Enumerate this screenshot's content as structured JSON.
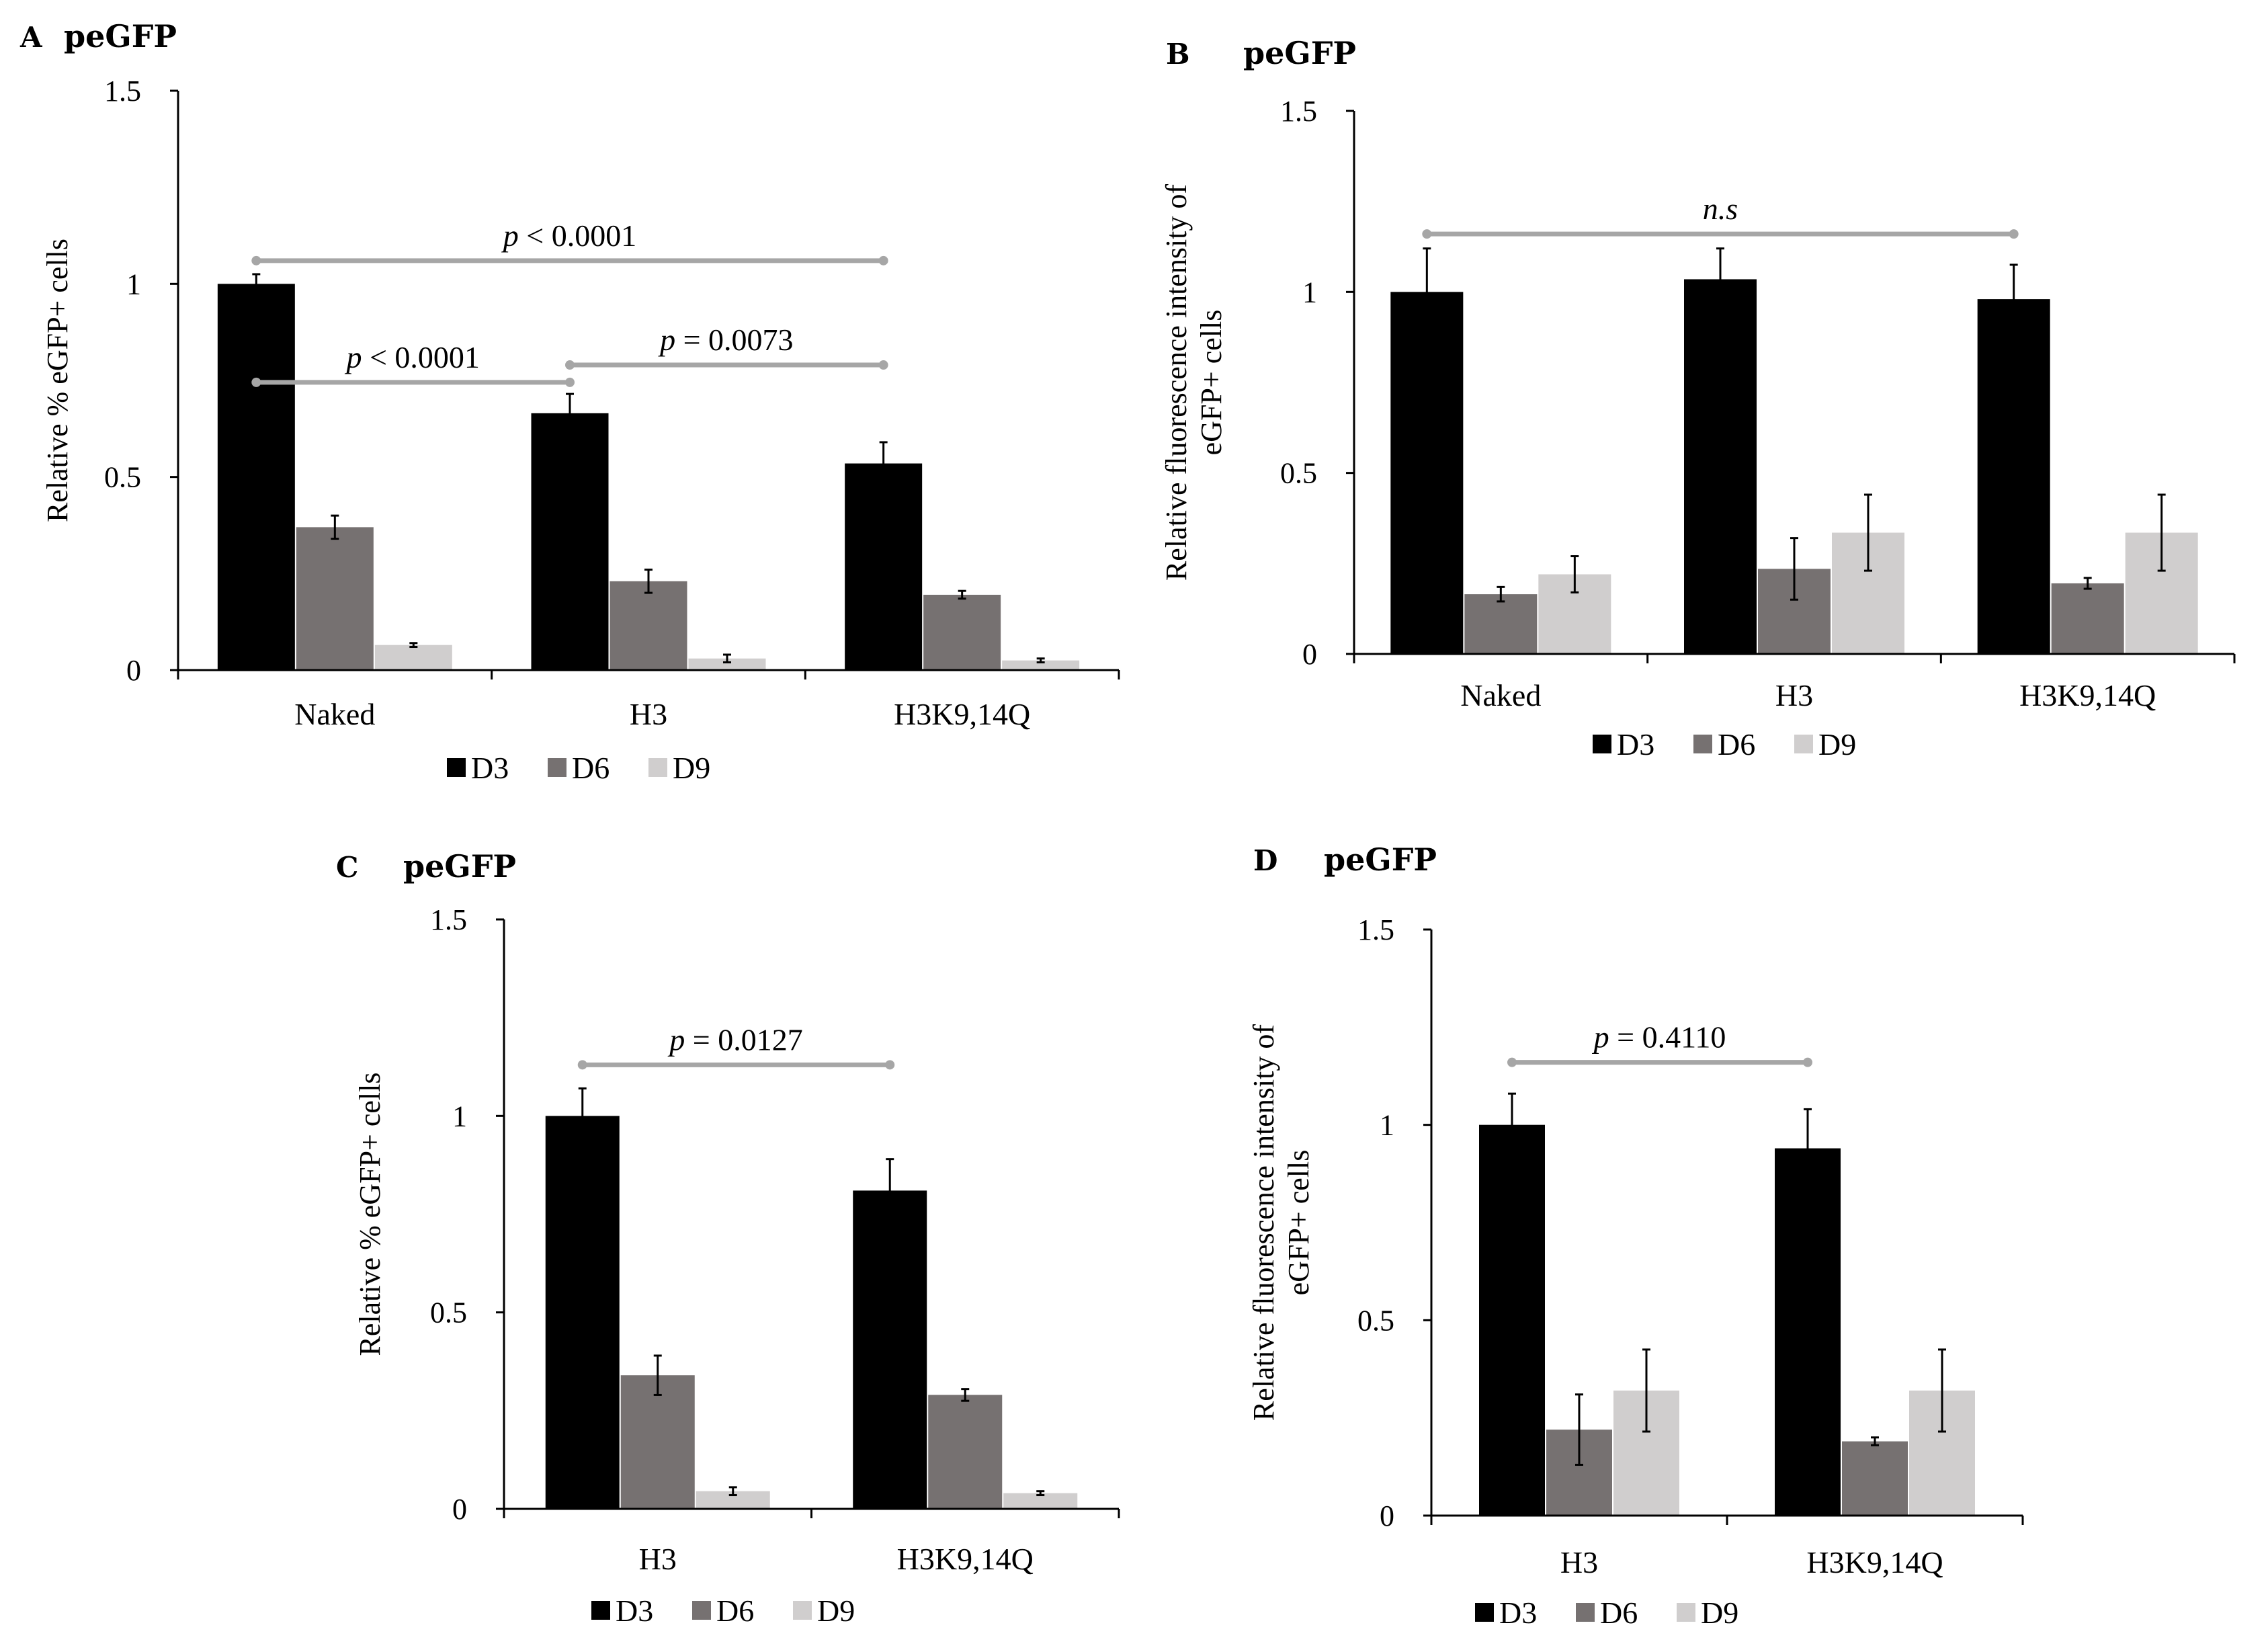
{
  "colors": {
    "D3": "#000000",
    "D6": "#767171",
    "D9": "#d0cece",
    "sig": "#a6a6a6"
  },
  "chart_data": [
    {
      "panel": "A",
      "title": "peGFP",
      "type": "bar",
      "ylabel": "Relative % eGFP+ cells",
      "xlabel": "",
      "ylim": [
        0,
        1.5
      ],
      "yticks": [
        "0",
        "0.5",
        "1",
        "1.5"
      ],
      "categories": [
        "Naked",
        "H3",
        "H3K9,14Q"
      ],
      "series": [
        {
          "name": "D3",
          "values": [
            1.0,
            0.665,
            0.535
          ],
          "errors": [
            0.025,
            0.05,
            0.055
          ]
        },
        {
          "name": "D6",
          "values": [
            0.37,
            0.23,
            0.195
          ],
          "errors": [
            0.03,
            0.03,
            0.01
          ]
        },
        {
          "name": "D9",
          "values": [
            0.065,
            0.03,
            0.025
          ],
          "errors": [
            0.005,
            0.01,
            0.005
          ]
        }
      ],
      "annotations": [
        {
          "italic": "p",
          "text": " < 0.0001",
          "from": 0,
          "to": 2,
          "y": 1.06
        },
        {
          "italic": "p",
          "text": " < 0.0001",
          "from": 0,
          "to": 1,
          "y": 0.745
        },
        {
          "italic": "p",
          "text": " = 0.0073",
          "from": 1,
          "to": 2,
          "y": 0.79
        }
      ]
    },
    {
      "panel": "B",
      "title": "peGFP",
      "type": "bar",
      "ylabel": "Relative fluorescence intensity of eGFP+ cells",
      "ylabel_lines": [
        "Relative fluorescence intensity of",
        "eGFP+ cells"
      ],
      "xlabel": "",
      "ylim": [
        0,
        1.5
      ],
      "yticks": [
        "0",
        "0.5",
        "1",
        "1.5"
      ],
      "categories": [
        "Naked",
        "H3",
        "H3K9,14Q"
      ],
      "series": [
        {
          "name": "D3",
          "values": [
            1.0,
            1.035,
            0.98
          ],
          "errors": [
            0.12,
            0.085,
            0.095
          ]
        },
        {
          "name": "D6",
          "values": [
            0.165,
            0.235,
            0.195
          ],
          "errors": [
            0.02,
            0.085,
            0.015
          ]
        },
        {
          "name": "D9",
          "values": [
            0.22,
            0.335,
            0.335
          ],
          "errors": [
            0.05,
            0.105,
            0.105
          ]
        }
      ],
      "annotations": [
        {
          "italic": "n.s",
          "text": "",
          "from": 0,
          "to": 2,
          "y": 1.16
        }
      ]
    },
    {
      "panel": "C",
      "title": "peGFP",
      "type": "bar",
      "ylabel": "Relative % eGFP+ cells",
      "xlabel": "",
      "ylim": [
        0,
        1.5
      ],
      "yticks": [
        "0",
        "0.5",
        "1",
        "1.5"
      ],
      "categories": [
        "H3",
        "H3K9,14Q"
      ],
      "series": [
        {
          "name": "D3",
          "values": [
            1.0,
            0.81
          ],
          "errors": [
            0.07,
            0.08
          ]
        },
        {
          "name": "D6",
          "values": [
            0.34,
            0.29
          ],
          "errors": [
            0.05,
            0.015
          ]
        },
        {
          "name": "D9",
          "values": [
            0.045,
            0.04
          ],
          "errors": [
            0.01,
            0.005
          ]
        }
      ],
      "annotations": [
        {
          "italic": "p",
          "text": "  = 0.0127",
          "from": 0,
          "to": 1,
          "y": 1.13
        }
      ]
    },
    {
      "panel": "D",
      "title": "peGFP",
      "type": "bar",
      "ylabel": "Relative fluorescence intensity of eGFP+ cells",
      "ylabel_lines": [
        "Relative fluorescence intensity of",
        "eGFP+ cells"
      ],
      "xlabel": "",
      "ylim": [
        0,
        1.5
      ],
      "yticks": [
        "0",
        "0.5",
        "1",
        "1.5"
      ],
      "categories": [
        "H3",
        "H3K9,14Q"
      ],
      "series": [
        {
          "name": "D3",
          "values": [
            1.0,
            0.94
          ],
          "errors": [
            0.08,
            0.1
          ]
        },
        {
          "name": "D6",
          "values": [
            0.22,
            0.19
          ],
          "errors": [
            0.09,
            0.01
          ]
        },
        {
          "name": "D9",
          "values": [
            0.32,
            0.32
          ],
          "errors": [
            0.105,
            0.105
          ]
        }
      ],
      "annotations": [
        {
          "italic": "p",
          "text": " = 0.4110",
          "from": 0,
          "to": 1,
          "y": 1.16
        }
      ]
    }
  ]
}
